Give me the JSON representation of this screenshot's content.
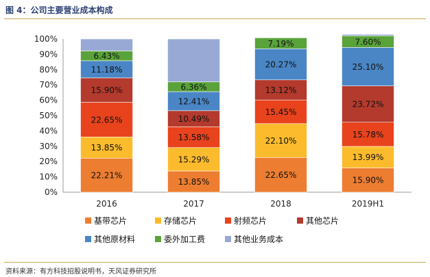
{
  "header": {
    "title": "图 4：公司主要营业成本构成"
  },
  "footer": {
    "source": "资料来源：有方科技招股说明书，天风证券研究所"
  },
  "colors": {
    "基带芯片": "#ed7d31",
    "存储芯片": "#fcbb2c",
    "射频芯片": "#e8431d",
    "其他芯片": "#b33a2d",
    "其他原材料": "#4a86c5",
    "委外加工费": "#5aa33b",
    "其他业务成本": "#97a9d4"
  },
  "chart_data": {
    "type": "bar",
    "stacked": true,
    "categories": [
      "2016",
      "2017",
      "2018",
      "2019H1"
    ],
    "y_ticks": [
      "0%",
      "10%",
      "20%",
      "30%",
      "40%",
      "50%",
      "60%",
      "70%",
      "80%",
      "90%",
      "100%"
    ],
    "ylim": [
      0,
      100
    ],
    "legend_position": "bottom",
    "series": [
      {
        "name": "基带芯片",
        "values": [
          22.21,
          13.85,
          22.65,
          15.9
        ],
        "labels": [
          "22.21%",
          "13.85%",
          "22.65%",
          "15.90%"
        ]
      },
      {
        "name": "存储芯片",
        "values": [
          13.85,
          15.29,
          22.1,
          13.99
        ],
        "labels": [
          "13.85%",
          "15.29%",
          "22.10%",
          "13.99%"
        ]
      },
      {
        "name": "射频芯片",
        "values": [
          22.65,
          13.58,
          15.45,
          15.78
        ],
        "labels": [
          "22.65%",
          "13.58%",
          "15.45%",
          "15.78%"
        ]
      },
      {
        "name": "其他芯片",
        "values": [
          15.9,
          10.49,
          13.12,
          23.72
        ],
        "labels": [
          "15.90%",
          "10.49%",
          "13.12%",
          "23.72%"
        ]
      },
      {
        "name": "其他原材料",
        "values": [
          11.18,
          12.41,
          20.27,
          25.1
        ],
        "labels": [
          "11.18%",
          "12.41%",
          "20.27%",
          "25.10%"
        ]
      },
      {
        "name": "委外加工费",
        "values": [
          6.43,
          6.36,
          7.19,
          7.6
        ],
        "labels": [
          "6.43%",
          "6.36%",
          "7.19%",
          "7.60%"
        ]
      },
      {
        "name": "其他业务成本",
        "values": [
          7.78,
          28.02,
          0.22,
          0.91
        ],
        "labels": [
          "",
          "",
          "",
          ""
        ]
      }
    ],
    "legend": [
      [
        "基带芯片",
        "存储芯片",
        "射频芯片",
        "其他芯片"
      ],
      [
        "其他原材料",
        "委外加工费",
        "其他业务成本"
      ]
    ]
  }
}
